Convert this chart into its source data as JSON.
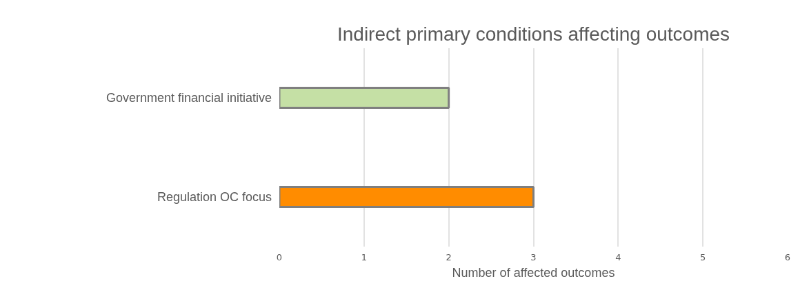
{
  "chart_data": {
    "type": "bar",
    "orientation": "horizontal",
    "title": "Indirect primary conditions affecting outcomes",
    "xlabel": "Number of affected outcomes",
    "categories": [
      "Government financial initiative",
      "Regulation OC focus"
    ],
    "values": [
      2,
      3
    ],
    "colors": [
      "#c5e0a5",
      "#ff8c00"
    ],
    "xlim": [
      0,
      6
    ],
    "xticks": [
      0,
      1,
      2,
      3,
      4,
      5,
      6
    ],
    "grid": "x"
  }
}
